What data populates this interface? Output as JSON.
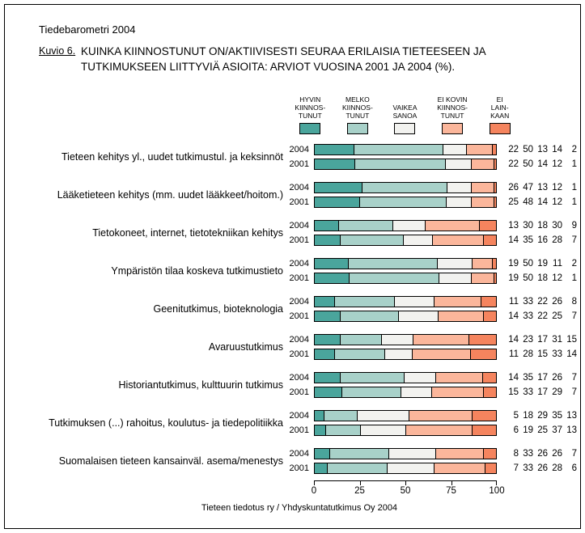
{
  "page": {
    "title": "Tiedebarometri 2004",
    "figure_label": "Kuvio 6.",
    "figure_title": "KUINKA KIINNOSTUNUT ON/AKTIIVISESTI SEURAA ERILAISIA TIETEESEEN JA\nTUTKIMUKSEEN LIITTYVIÄ ASIOITA: ARVIOT VUOSINA 2001 JA 2004 (%).",
    "footer": "Tieteen tiedotus ry / Yhdyskuntatutkimus Oy 2004"
  },
  "legend": {
    "items": [
      {
        "name": "hyvin-kiinnostunut",
        "label": "HYVIN\nKIINNOS-\nTUNUT",
        "color": "#4AA59C"
      },
      {
        "name": "melko-kiinnostunut",
        "label": "MELKO\nKIINNOS-\nTUNUT",
        "color": "#A8D1C9"
      },
      {
        "name": "vaikea-sanoa",
        "label": "VAIKEA\nSANOA",
        "color": "#F2F2EF"
      },
      {
        "name": "ei-kovin-kiinnostunut",
        "label": "EI KOVIN\nKIINNOS-\nTUNUT",
        "color": "#FBB69B"
      },
      {
        "name": "ei-lainkaan",
        "label": "EI\nLAIN-\nKAAN",
        "color": "#F5845E"
      }
    ]
  },
  "chart_data": {
    "type": "bar",
    "orientation": "horizontal",
    "stacked": true,
    "unit": "%",
    "series_labels": [
      "HYVIN KIINNOSTUNUT",
      "MELKO KIINNOSTUNUT",
      "VAIKEA SANOA",
      "EI KOVIN KIINNOSTUNUT",
      "EI LAINKAAN"
    ],
    "colors": [
      "#4AA59C",
      "#A8D1C9",
      "#F2F2EF",
      "#FBB69B",
      "#F5845E"
    ],
    "axis": {
      "min": 0,
      "max": 100,
      "ticks": [
        0,
        25,
        50,
        75,
        100
      ]
    },
    "rows": [
      {
        "topic": "Tieteen kehitys yl., uudet tutkimustul. ja keksinnöt",
        "bars": [
          {
            "year": "2004",
            "values": [
              22,
              50,
              13,
              14,
              2
            ]
          },
          {
            "year": "2001",
            "values": [
              22,
              50,
              14,
              12,
              1
            ]
          }
        ]
      },
      {
        "topic": "Lääketieteen kehitys (mm. uudet lääkkeet/hoitom.)",
        "bars": [
          {
            "year": "2004",
            "values": [
              26,
              47,
              13,
              12,
              1
            ]
          },
          {
            "year": "2001",
            "values": [
              25,
              48,
              14,
              12,
              1
            ]
          }
        ]
      },
      {
        "topic": "Tietokoneet, internet, tietotekniikan kehitys",
        "bars": [
          {
            "year": "2004",
            "values": [
              13,
              30,
              18,
              30,
              9
            ]
          },
          {
            "year": "2001",
            "values": [
              14,
              35,
              16,
              28,
              7
            ]
          }
        ]
      },
      {
        "topic": "Ympäristön tilaa koskeva tutkimustieto",
        "bars": [
          {
            "year": "2004",
            "values": [
              19,
              50,
              19,
              11,
              2
            ]
          },
          {
            "year": "2001",
            "values": [
              19,
              50,
              18,
              12,
              1
            ]
          }
        ]
      },
      {
        "topic": "Geenitutkimus, bioteknologia",
        "bars": [
          {
            "year": "2004",
            "values": [
              11,
              33,
              22,
              26,
              8
            ]
          },
          {
            "year": "2001",
            "values": [
              14,
              33,
              22,
              25,
              7
            ]
          }
        ]
      },
      {
        "topic": "Avaruustutkimus",
        "bars": [
          {
            "year": "2004",
            "values": [
              14,
              23,
              17,
              31,
              15
            ]
          },
          {
            "year": "2001",
            "values": [
              11,
              28,
              15,
              33,
              14
            ]
          }
        ]
      },
      {
        "topic": "Historiantutkimus, kulttuurin tutkimus",
        "bars": [
          {
            "year": "2004",
            "values": [
              14,
              35,
              17,
              26,
              7
            ]
          },
          {
            "year": "2001",
            "values": [
              15,
              33,
              17,
              29,
              7
            ]
          }
        ]
      },
      {
        "topic": "Tutkimuksen (...) rahoitus, koulutus- ja tiedepolitiikka",
        "bars": [
          {
            "year": "2004",
            "values": [
              5,
              18,
              29,
              35,
              13
            ]
          },
          {
            "year": "2001",
            "values": [
              6,
              19,
              25,
              37,
              13
            ]
          }
        ]
      },
      {
        "topic": "Suomalaisen tieteen kansainväl. asema/menestys",
        "bars": [
          {
            "year": "2004",
            "values": [
              8,
              33,
              26,
              26,
              7
            ]
          },
          {
            "year": "2001",
            "values": [
              7,
              33,
              26,
              28,
              6
            ]
          }
        ]
      }
    ]
  }
}
